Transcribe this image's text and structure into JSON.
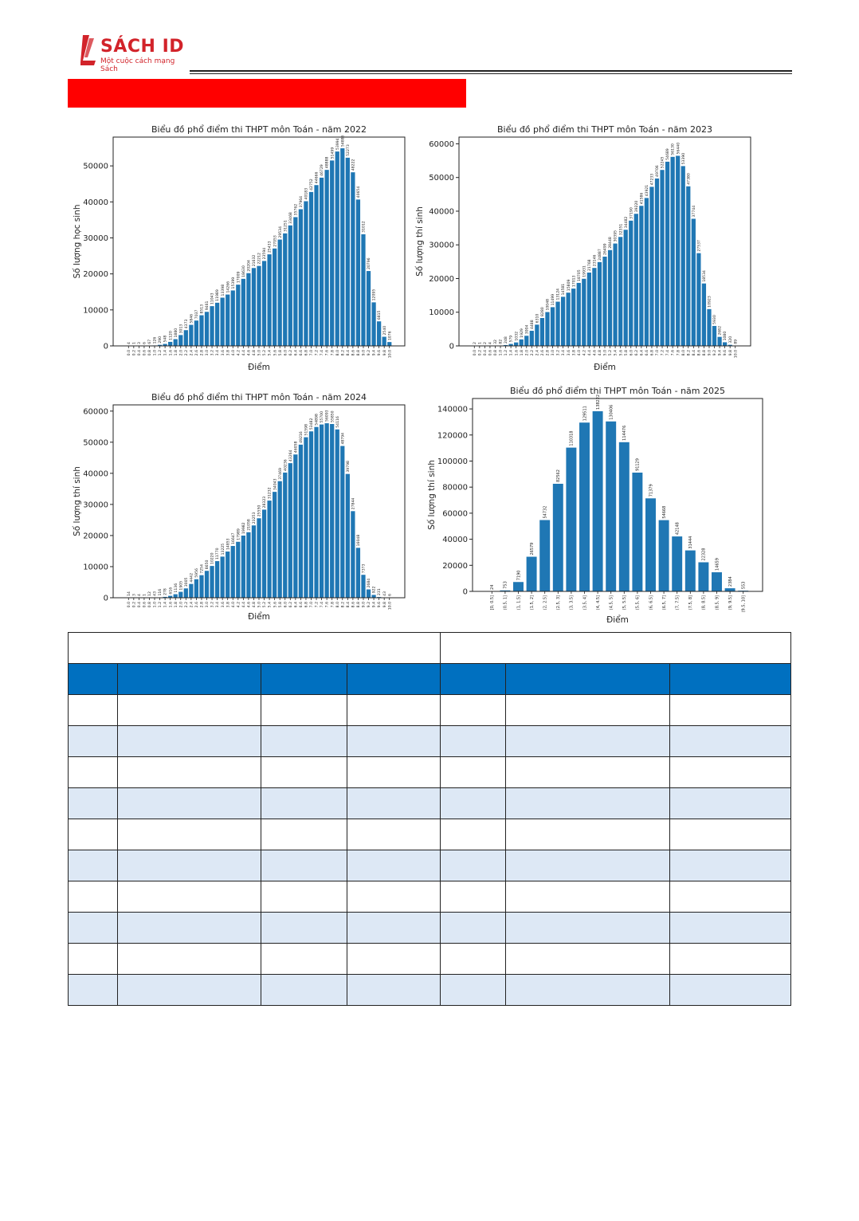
{
  "brand": {
    "name": "SÁCH ID",
    "tagline": "Một cuộc cách mạng Sách",
    "color": "#d2232a",
    "banner_color": "#ff0000"
  },
  "colors": {
    "bar": "#1f77b4",
    "table_header": "#0070c0",
    "table_alt_row": "#dde8f5"
  },
  "charts": {
    "c2022": {
      "type": "bar",
      "title": "Biểu đồ phổ điểm thi THPT môn Toán - năm 2022",
      "xlabel": "Điểm",
      "ylabel": "Số lượng học sinh",
      "ylim": [
        0,
        58000
      ],
      "yticks": [
        0,
        10000,
        20000,
        30000,
        40000,
        50000
      ],
      "categories": [
        "0.0",
        "0.2",
        "0.4",
        "0.6",
        "0.8",
        "1.0",
        "1.2",
        "1.4",
        "1.6",
        "1.8",
        "2.0",
        "2.2",
        "2.4",
        "2.6",
        "2.8",
        "3.0",
        "3.2",
        "3.4",
        "3.6",
        "3.8",
        "4.0",
        "4.2",
        "4.4",
        "4.6",
        "4.8",
        "5.0",
        "5.2",
        "5.4",
        "5.6",
        "5.8",
        "6.0",
        "6.2",
        "6.4",
        "6.6",
        "6.8",
        "7.0",
        "7.2",
        "7.4",
        "7.6",
        "7.8",
        "8.0",
        "8.2",
        "8.4",
        "8.6",
        "8.8",
        "9.0",
        "9.2",
        "9.4",
        "9.6",
        "9.8",
        "10.0"
      ],
      "values": [
        4,
        1,
        3,
        6,
        67,
        126,
        290,
        548,
        1120,
        1880,
        3013,
        4373,
        5846,
        7037,
        8513,
        9461,
        11043,
        11989,
        13398,
        14266,
        15399,
        17009,
        18630,
        20204,
        21632,
        22212,
        23594,
        25433,
        27053,
        29534,
        31251,
        33468,
        35762,
        37964,
        40183,
        42752,
        44666,
        46729,
        48888,
        51499,
        53994,
        54885,
        52273,
        48222,
        40654,
        31012,
        20796,
        12095,
        6815,
        2540,
        1076
      ]
    },
    "c2023": {
      "type": "bar",
      "title": "Biểu đồ phổ điểm thi THPT môn Toán - năm 2023",
      "xlabel": "Điểm",
      "ylabel": "Số lượng thí sinh",
      "ylim": [
        0,
        62000
      ],
      "yticks": [
        0,
        10000,
        20000,
        30000,
        40000,
        50000,
        60000
      ],
      "categories": [
        "0.0",
        "0.2",
        "0.4",
        "0.6",
        "0.8",
        "1.0",
        "1.2",
        "1.4",
        "1.6",
        "1.8",
        "2.0",
        "2.2",
        "2.4",
        "2.6",
        "2.8",
        "3.0",
        "3.2",
        "3.4",
        "3.6",
        "3.8",
        "4.0",
        "4.2",
        "4.4",
        "4.6",
        "4.8",
        "5.0",
        "5.2",
        "5.4",
        "5.6",
        "5.8",
        "6.0",
        "6.2",
        "6.4",
        "6.6",
        "6.8",
        "7.0",
        "7.2",
        "7.4",
        "7.6",
        "7.8",
        "8.0",
        "8.2",
        "8.4",
        "8.6",
        "8.8",
        "9.0",
        "9.2",
        "9.4",
        "9.6",
        "9.8",
        "10.0"
      ],
      "values": [
        2,
        1,
        2,
        4,
        32,
        82,
        248,
        579,
        1032,
        1929,
        3004,
        4488,
        6310,
        8280,
        10048,
        11499,
        13124,
        14581,
        15809,
        17013,
        18705,
        19931,
        21768,
        23146,
        24887,
        26499,
        28448,
        30395,
        32351,
        34482,
        37190,
        39220,
        41586,
        43921,
        47233,
        49706,
        52245,
        54689,
        56130,
        56440,
        53390,
        47380,
        37744,
        27537,
        18534,
        10923,
        5930,
        2682,
        1080,
        320,
        89
      ]
    },
    "c2024": {
      "type": "bar",
      "title": "Biểu đồ phổ điểm thi THPT môn Toán - năm 2024",
      "xlabel": "Điểm",
      "ylabel": "Số lượng thí sinh",
      "ylim": [
        0,
        62000
      ],
      "yticks": [
        0,
        10000,
        20000,
        30000,
        40000,
        50000,
        60000
      ],
      "categories": [
        "0.0",
        "0.2",
        "0.4",
        "0.6",
        "0.8",
        "1.0",
        "1.2",
        "1.4",
        "1.6",
        "1.8",
        "2.0",
        "2.2",
        "2.4",
        "2.6",
        "2.8",
        "3.0",
        "3.2",
        "3.4",
        "3.6",
        "3.8",
        "4.0",
        "4.2",
        "4.4",
        "4.6",
        "4.8",
        "5.0",
        "5.2",
        "5.4",
        "5.6",
        "5.8",
        "6.0",
        "6.2",
        "6.4",
        "6.6",
        "6.8",
        "7.0",
        "7.2",
        "7.4",
        "7.6",
        "7.8",
        "8.0",
        "8.2",
        "8.4",
        "8.6",
        "8.8",
        "9.0",
        "9.2",
        "9.4",
        "9.6",
        "9.8",
        "10.0"
      ],
      "values": [
        14,
        3,
        4,
        1,
        12,
        43,
        116,
        278,
        616,
        1136,
        1905,
        3005,
        4442,
        5956,
        7254,
        8650,
        10220,
        11770,
        13225,
        14853,
        16647,
        17989,
        19982,
        21058,
        23253,
        25550,
        28323,
        31232,
        34043,
        37469,
        40236,
        43264,
        46058,
        49216,
        51598,
        53482,
        54898,
        55700,
        56093,
        55850,
        54116,
        48794,
        39798,
        27844,
        16048,
        7373,
        2684,
        922,
        231,
        43,
        6
      ]
    },
    "c2025": {
      "type": "bar",
      "title": "Biểu đồ phổ điểm thi THPT môn Toán - năm 2025",
      "xlabel": "Điểm",
      "ylabel": "Số lượng thí sinh",
      "ylim": [
        0,
        148000
      ],
      "yticks": [
        0,
        20000,
        40000,
        60000,
        80000,
        100000,
        120000,
        140000
      ],
      "categories": [
        "[0, 0.5]",
        "(0.5, 1]",
        "(1, 1.5]",
        "(1.5, 2]",
        "(2, 2.5]",
        "(2.5, 3]",
        "(3, 3.5]",
        "(3.5, 4]",
        "(4, 4.5]",
        "(4.5, 5]",
        "(5, 5.5]",
        "(5.5, 6]",
        "(6, 6.5]",
        "(6.5, 7]",
        "(7, 7.5]",
        "(7.5, 8]",
        "(8, 8.5]",
        "(8.5, 9]",
        "(9, 9.5]",
        "(9.5, 10]"
      ],
      "values": [
        24,
        753,
        7190,
        26579,
        54732,
        82562,
        110318,
        129511,
        138222,
        130406,
        114476,
        91129,
        71379,
        54668,
        42148,
        31444,
        22328,
        14659,
        2384,
        553
      ]
    }
  }
}
